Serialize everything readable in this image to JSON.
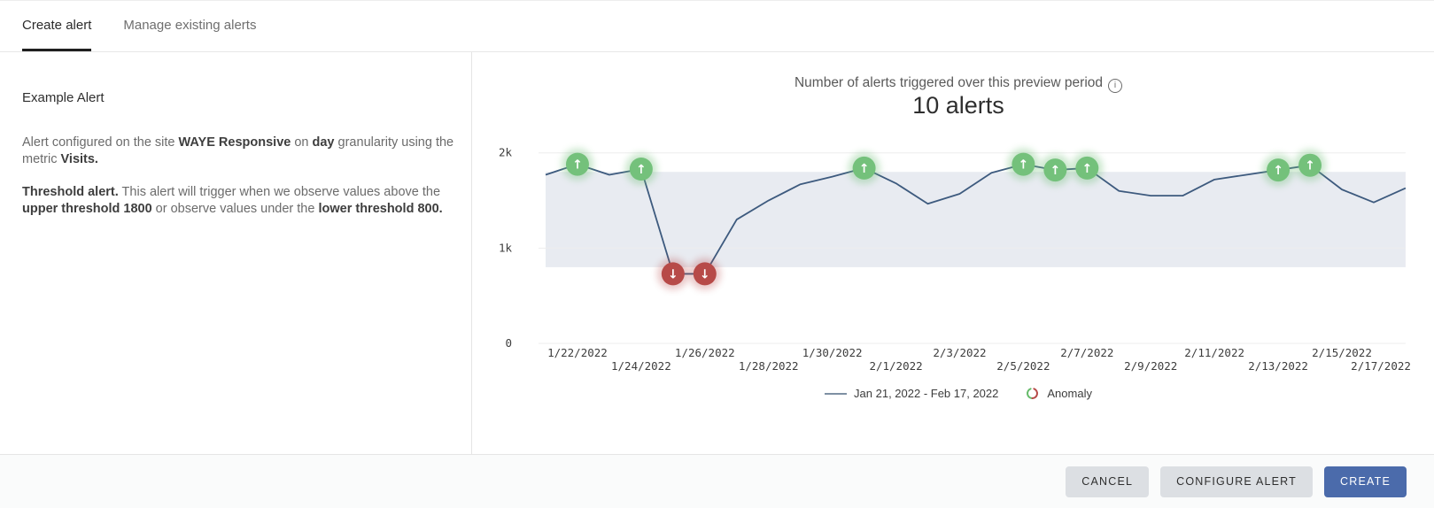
{
  "tab_bar": {
    "tabs": [
      {
        "label": "Create alert",
        "active": true
      },
      {
        "label": "Manage existing alerts",
        "active": false
      }
    ]
  },
  "left_panel": {
    "heading": "Example Alert",
    "paragraphs": [
      {
        "segments": [
          {
            "text": "Alert configured on the site "
          },
          {
            "text": "WAYE Responsive",
            "bold": true
          },
          {
            "text": " on "
          },
          {
            "text": "day",
            "bold": true
          },
          {
            "text": " granularity using the metric "
          },
          {
            "text": "Visits.",
            "bold": true
          }
        ]
      },
      {
        "segments": [
          {
            "text": "Threshold alert.",
            "bold": true
          },
          {
            "text": " This alert will trigger when we observe values above the "
          },
          {
            "text": "upper threshold 1800",
            "bold": true
          },
          {
            "text": " or observe values under the "
          },
          {
            "text": "lower threshold 800.",
            "bold": true
          }
        ]
      }
    ]
  },
  "chart_header": {
    "title": "Number of alerts triggered over this preview period",
    "info_icon": "i",
    "alert_count": "10 alerts"
  },
  "chart_data": {
    "type": "line",
    "title": "Number of alerts triggered over this preview period",
    "value_label": "10 alerts",
    "x": [
      "1/21/2022",
      "1/22/2022",
      "1/23/2022",
      "1/24/2022",
      "1/25/2022",
      "1/26/2022",
      "1/27/2022",
      "1/28/2022",
      "1/29/2022",
      "1/30/2022",
      "1/31/2022",
      "2/1/2022",
      "2/2/2022",
      "2/3/2022",
      "2/4/2022",
      "2/5/2022",
      "2/6/2022",
      "2/7/2022",
      "2/8/2022",
      "2/9/2022",
      "2/10/2022",
      "2/11/2022",
      "2/12/2022",
      "2/13/2022",
      "2/14/2022",
      "2/15/2022",
      "2/16/2022",
      "2/17/2022"
    ],
    "values": [
      1770,
      1880,
      1770,
      1830,
      730,
      730,
      1300,
      1500,
      1670,
      1750,
      1840,
      1680,
      1465,
      1570,
      1790,
      1880,
      1820,
      1840,
      1600,
      1550,
      1550,
      1720,
      1770,
      1820,
      1870,
      1615,
      1480,
      1630
    ],
    "anomalies": [
      {
        "index": 1,
        "direction": "up"
      },
      {
        "index": 3,
        "direction": "up"
      },
      {
        "index": 4,
        "direction": "down"
      },
      {
        "index": 5,
        "direction": "down"
      },
      {
        "index": 10,
        "direction": "up"
      },
      {
        "index": 15,
        "direction": "up"
      },
      {
        "index": 16,
        "direction": "up"
      },
      {
        "index": 17,
        "direction": "up"
      },
      {
        "index": 23,
        "direction": "up"
      },
      {
        "index": 24,
        "direction": "up"
      }
    ],
    "thresholds": {
      "upper": 1800,
      "lower": 800
    },
    "ylim": [
      0,
      2000
    ],
    "yticks": [
      {
        "value": 2000,
        "label": "2k"
      },
      {
        "value": 1000,
        "label": "1k"
      },
      {
        "value": 0,
        "label": "0"
      }
    ],
    "xticks": {
      "row1_indices": [
        1,
        5,
        9,
        13,
        17,
        21,
        25
      ],
      "row2_indices": [
        3,
        7,
        11,
        15,
        19,
        23,
        27
      ]
    },
    "legend": {
      "series_label": "Jan 21, 2022 - Feb 17, 2022",
      "anomaly_label": "Anomaly"
    },
    "colors": {
      "line": "#3d5a7e",
      "band": "#e8ebf1",
      "grid": "#ededed",
      "anomaly_up": "#74c17b",
      "anomaly_down": "#b74a48",
      "legend_line": "#7e90a3",
      "tick_text": "#3d3d3d"
    }
  },
  "footer": {
    "buttons": [
      {
        "label": "CANCEL",
        "variant": "gray"
      },
      {
        "label": "CONFIGURE ALERT",
        "variant": "gray"
      },
      {
        "label": "CREATE",
        "variant": "primary"
      }
    ]
  }
}
